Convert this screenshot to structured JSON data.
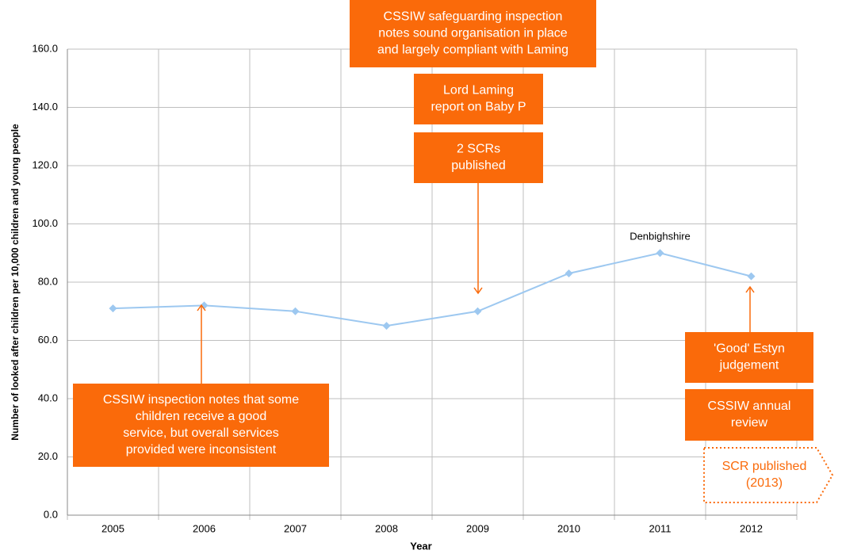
{
  "chart_data": {
    "type": "line",
    "x_label": "Year",
    "y_label": "Number of looked after children per 10,000 children and young people",
    "categories": [
      "2005",
      "2006",
      "2007",
      "2008",
      "2009",
      "2010",
      "2011",
      "2012"
    ],
    "series": [
      {
        "name": "Denbighshire",
        "color": "#9dc8f0",
        "values": [
          71,
          72,
          70,
          65,
          70,
          83,
          90,
          82
        ]
      }
    ],
    "ylim": [
      0,
      160
    ],
    "yticks": [
      {
        "value": 0,
        "label": "0.0"
      },
      {
        "value": 20,
        "label": "20.0"
      },
      {
        "value": 40,
        "label": "40.0"
      },
      {
        "value": 60,
        "label": "60.0"
      },
      {
        "value": 80,
        "label": "80.0"
      },
      {
        "value": 100,
        "label": "100.0"
      },
      {
        "value": 120,
        "label": "120.0"
      },
      {
        "value": 140,
        "label": "140.0"
      },
      {
        "value": 160,
        "label": "160.0"
      }
    ],
    "grid": true,
    "annotations": [
      {
        "lines": [
          "CSSIW safeguarding inspection",
          "notes sound organisation in place",
          "and largely compliant with Laming"
        ]
      },
      {
        "lines": [
          "Lord Laming",
          "report on Baby P"
        ]
      },
      {
        "lines": [
          "2 SCRs",
          "published"
        ]
      },
      {
        "lines": [
          "CSSIW inspection notes that some",
          "children receive a good",
          "service, but overall services",
          "provided were inconsistent"
        ]
      },
      {
        "lines": [
          "'Good' Estyn",
          "judgement"
        ]
      },
      {
        "lines": [
          "CSSIW annual",
          "review"
        ]
      },
      {
        "lines": [
          "SCR published",
          "(2013)"
        ]
      }
    ]
  }
}
